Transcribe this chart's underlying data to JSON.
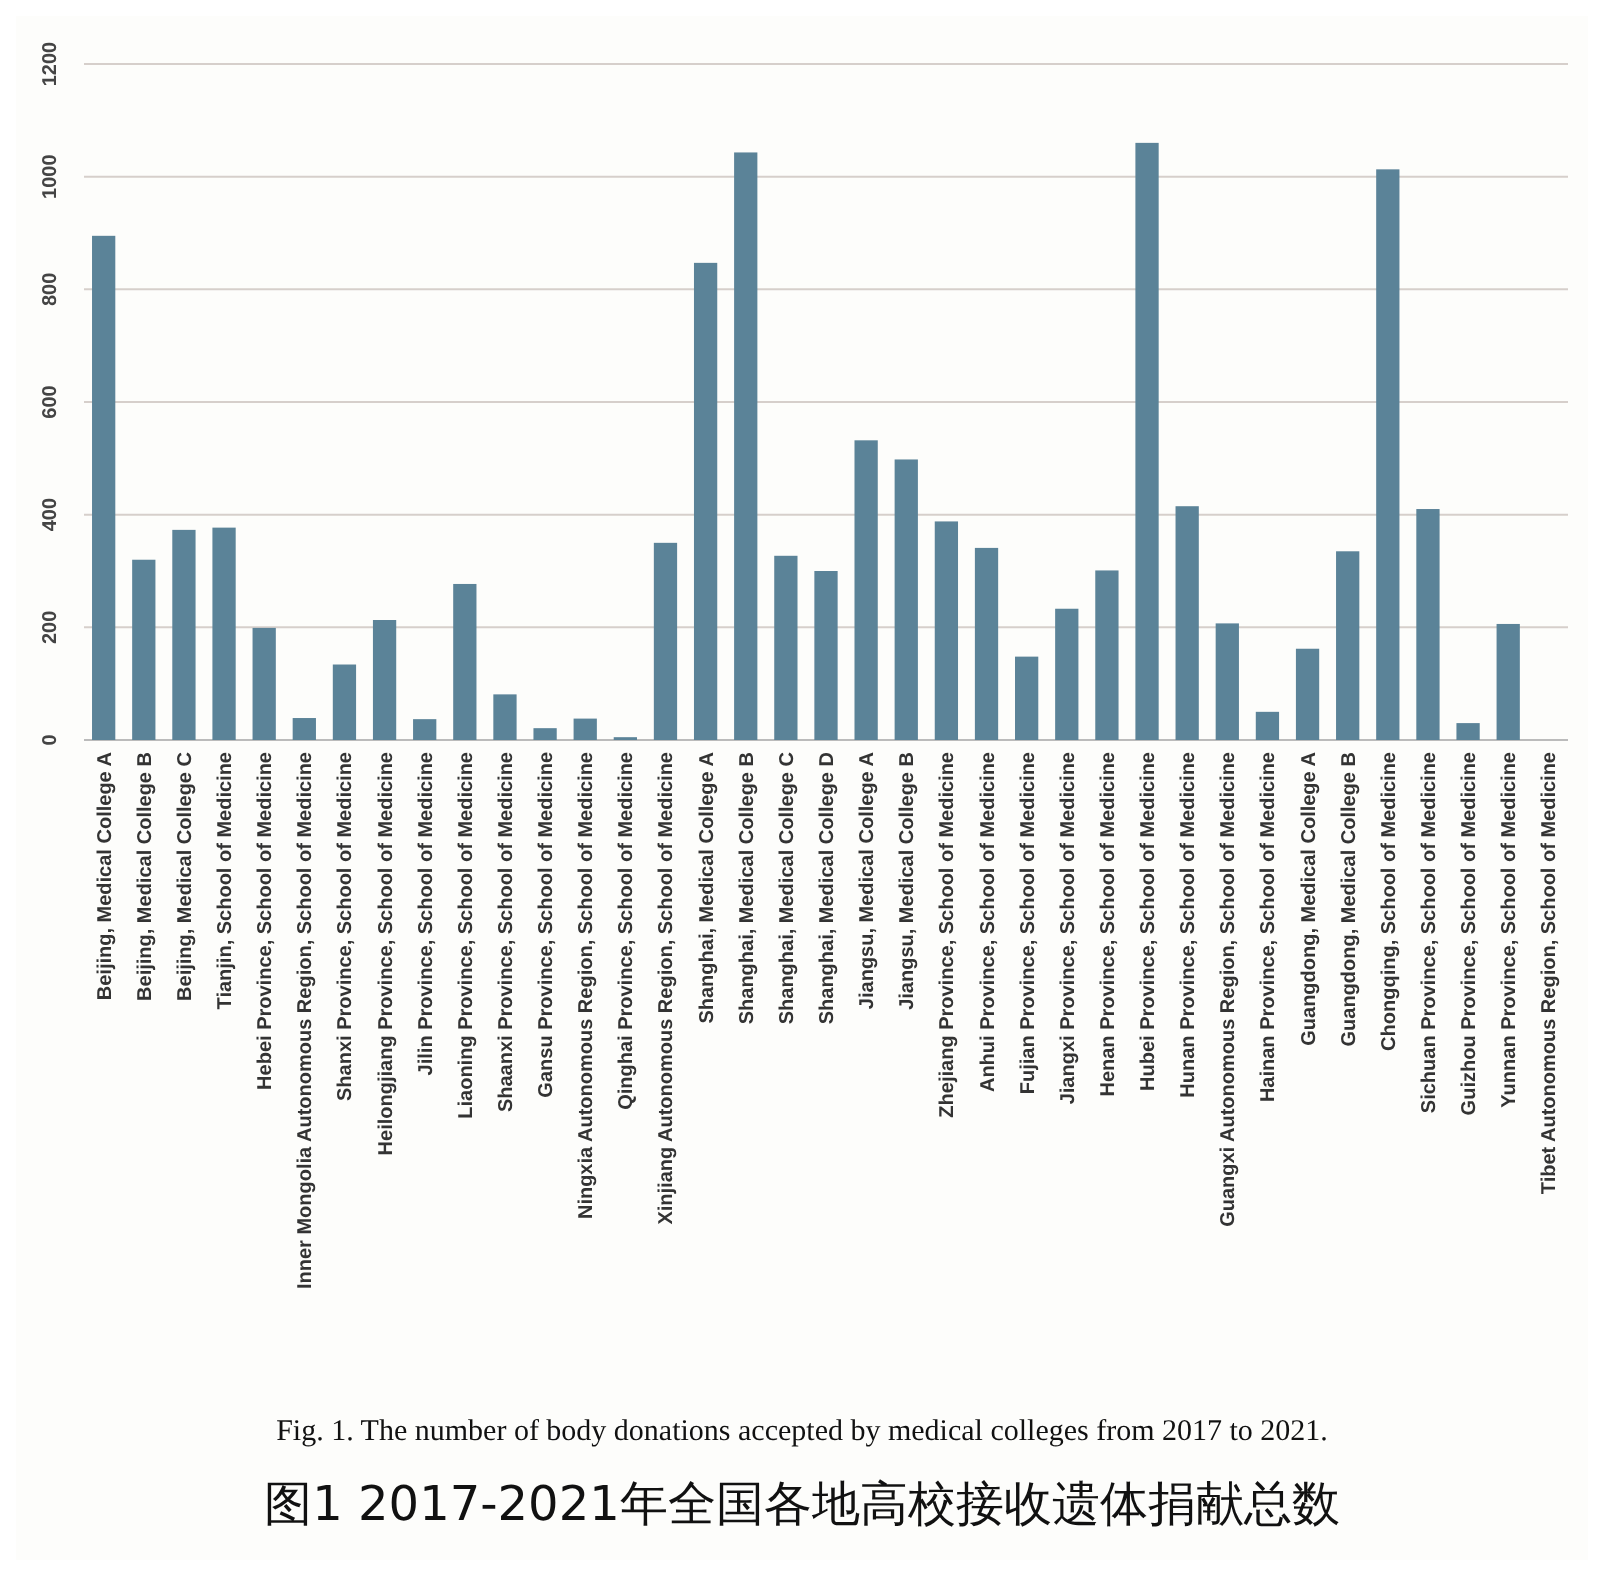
{
  "chart_data": {
    "type": "bar",
    "title": "Fig. 1. The number of body donations accepted by medical colleges from 2017 to 2021.",
    "subtitle": "图1 2017-2021年全国各地高校接收遗体捐献总数",
    "categories": [
      "Beijing, Medical College A",
      "Beijing, Medical College B",
      "Beijing, Medical College C",
      "Tianjin, School of Medicine",
      "Hebei Province, School of Medicine",
      "Inner Mongolia Autonomous Region, School of Medicine",
      "Shanxi Province, School of Medicine",
      "Heilongjiang Province, School of Medicine",
      "Jilin Province, School of Medicine",
      "Liaoning Province, School of Medicine",
      "Shaanxi Province, School of Medicine",
      "Gansu Province, School of Medicine",
      "Ningxia Autonomous Region, School of Medicine",
      "Qinghai Province, School of Medicine",
      "Xinjiang Autonomous Region, School of Medicine",
      "Shanghai, Medical College A",
      "Shanghai, Medical College B",
      "Shanghai, Medical College C",
      "Shanghai, Medical College D",
      "Jiangsu, Medical College A",
      "Jiangsu, Medical College B",
      "Zhejiang Province, School of Medicine",
      "Anhui Province, School of Medicine",
      "Fujian Province, School of Medicine",
      "Jiangxi Province, School of Medicine",
      "Henan Province, School of Medicine",
      "Hubei Province, School of Medicine",
      "Hunan Province, School of Medicine",
      "Guangxi Autonomous Region, School of Medicine",
      "Hainan Province, School of Medicine",
      "Guangdong, Medical College A",
      "Guangdong, Medical College B",
      "Chongqing, School of Medicine",
      "Sichuan Province, School of Medicine",
      "Guizhou Province, School of Medicine",
      "Yunnan Province, School of Medicine",
      "Tibet Autonomous Region, School of Medicine"
    ],
    "values": [
      895,
      320,
      373,
      377,
      199,
      39,
      134,
      213,
      37,
      277,
      81,
      21,
      38,
      5,
      350,
      847,
      1043,
      327,
      300,
      532,
      498,
      388,
      341,
      148,
      233,
      301,
      1060,
      415,
      207,
      50,
      162,
      335,
      1013,
      410,
      30,
      206,
      0
    ],
    "color": "#5b8398",
    "ylim": [
      0,
      1200
    ],
    "yticks": [
      0,
      200,
      400,
      600,
      800,
      1000,
      1200
    ],
    "grid": "y"
  }
}
